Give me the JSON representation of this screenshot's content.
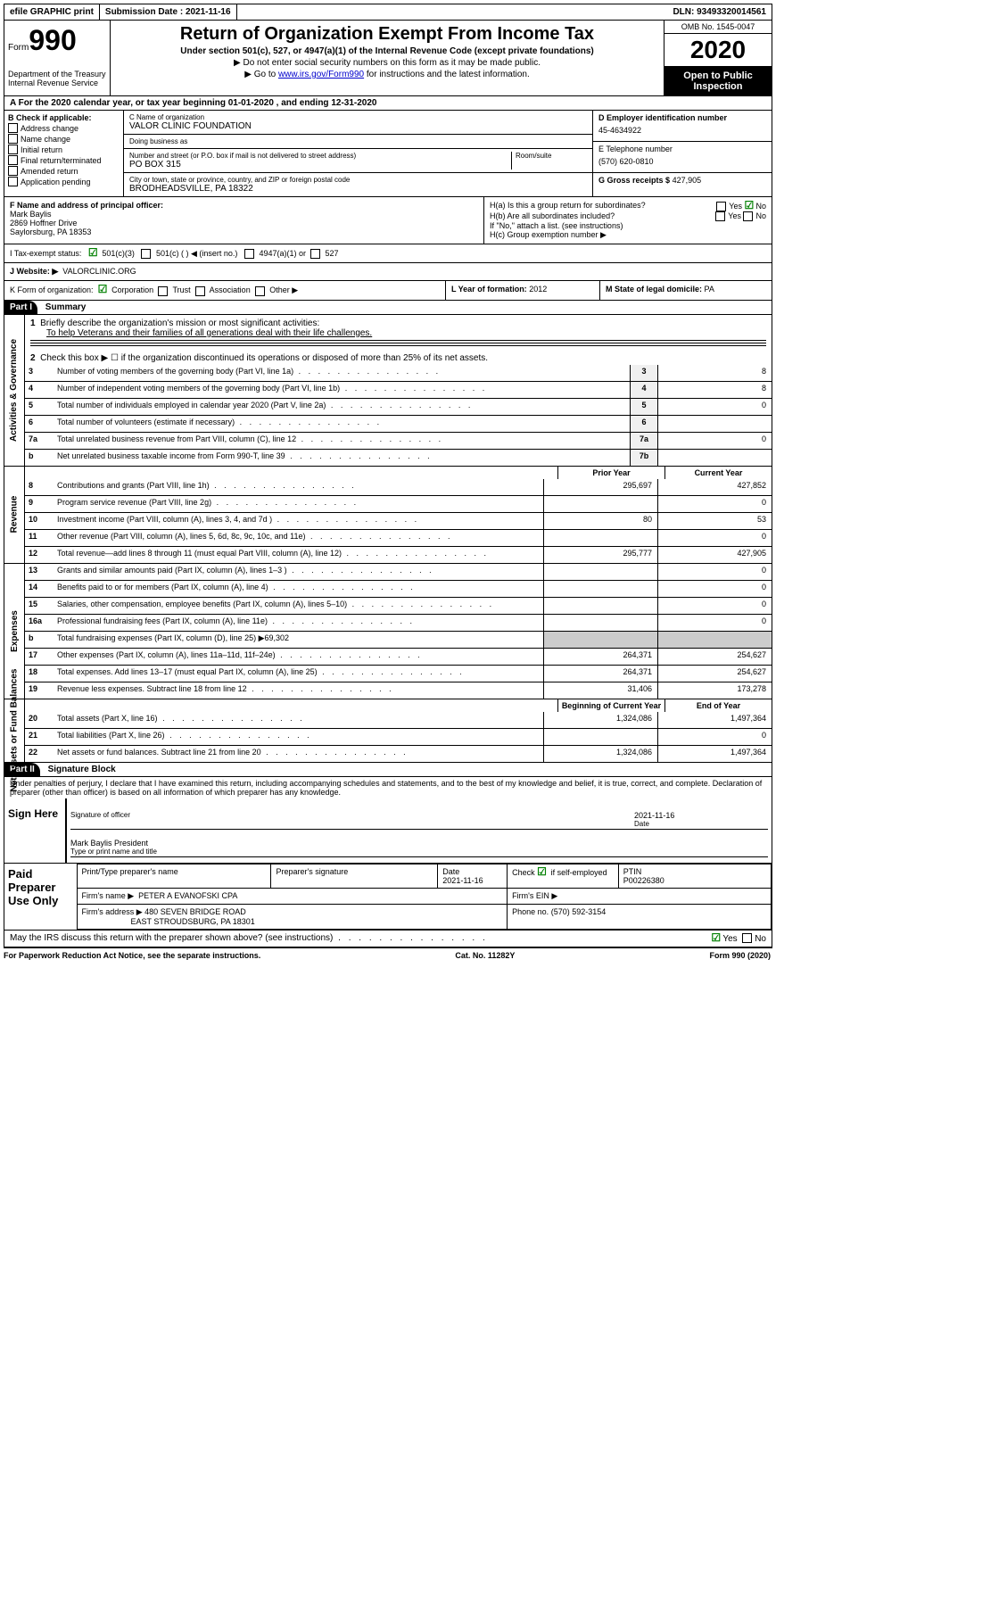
{
  "topbar": {
    "efile": "efile GRAPHIC print",
    "submission_label": "Submission Date :",
    "submission_date": "2021-11-16",
    "dln_label": "DLN:",
    "dln": "93493320014561"
  },
  "header": {
    "form_prefix": "Form",
    "form_number": "990",
    "dept": "Department of the Treasury",
    "irs": "Internal Revenue Service",
    "title": "Return of Organization Exempt From Income Tax",
    "subtitle": "Under section 501(c), 527, or 4947(a)(1) of the Internal Revenue Code (except private foundations)",
    "note1": "Do not enter social security numbers on this form as it may be made public.",
    "note2_pre": "Go to ",
    "note2_link": "www.irs.gov/Form990",
    "note2_post": " for instructions and the latest information.",
    "omb": "OMB No. 1545-0047",
    "year": "2020",
    "inspection": "Open to Public Inspection"
  },
  "row_a": "A For the 2020 calendar year, or tax year beginning 01-01-2020     , and ending 12-31-2020",
  "box_b": {
    "label": "B Check if applicable:",
    "items": [
      "Address change",
      "Name change",
      "Initial return",
      "Final return/terminated",
      "Amended return",
      "Application pending"
    ]
  },
  "box_c": {
    "name_lbl": "C Name of organization",
    "name": "VALOR CLINIC FOUNDATION",
    "dba_lbl": "Doing business as",
    "dba": "",
    "street_lbl": "Number and street (or P.O. box if mail is not delivered to street address)",
    "room_lbl": "Room/suite",
    "street": "PO BOX 315",
    "city_lbl": "City or town, state or province, country, and ZIP or foreign postal code",
    "city": "BRODHEADSVILLE, PA   18322"
  },
  "box_d": {
    "ein_lbl": "D Employer identification number",
    "ein": "45-4634922",
    "phone_lbl": "E Telephone number",
    "phone": "(570) 620-0810",
    "gross_lbl": "G Gross receipts $",
    "gross": "427,905"
  },
  "box_f": {
    "lbl": "F Name and address of principal officer:",
    "name": "Mark Baylis",
    "addr1": "2869 Hoffner Drive",
    "addr2": "Saylorsburg, PA   18353"
  },
  "box_h": {
    "a": "H(a)  Is this a group return for subordinates?",
    "b": "H(b)  Are all subordinates included?",
    "b_note": "If \"No,\" attach a list. (see instructions)",
    "c": "H(c)  Group exemption number ▶",
    "yes": "Yes",
    "no": "No"
  },
  "tax_exempt": {
    "lbl": "I  Tax-exempt status:",
    "opt1": "501(c)(3)",
    "opt2": "501(c) (    ) ◀ (insert no.)",
    "opt3": "4947(a)(1) or",
    "opt4": "527"
  },
  "row_j": {
    "lbl": "J  Website: ▶",
    "val": "VALORCLINIC.ORG"
  },
  "row_k": {
    "lbl": "K Form of organization:",
    "opts": [
      "Corporation",
      "Trust",
      "Association",
      "Other ▶"
    ]
  },
  "row_l": {
    "lbl": "L Year of formation:",
    "val": "2012"
  },
  "row_m": {
    "lbl": "M State of legal domicile:",
    "val": "PA"
  },
  "parts": {
    "p1": "Part I",
    "p1_title": "Summary",
    "p2": "Part II",
    "p2_title": "Signature Block"
  },
  "sidelabels": {
    "ag": "Activities & Governance",
    "rev": "Revenue",
    "exp": "Expenses",
    "na": "Net Assets or Fund Balances"
  },
  "summary": {
    "l1": "Briefly describe the organization's mission or most significant activities:",
    "l1_val": "To help Veterans and their families of all generations deal with their life challenges.",
    "l2": "Check this box ▶ ☐  if the organization discontinued its operations or disposed of more than 25% of its net assets.",
    "lines_ag": [
      {
        "n": "3",
        "t": "Number of voting members of the governing body (Part VI, line 1a)",
        "b": "3",
        "v": "8"
      },
      {
        "n": "4",
        "t": "Number of independent voting members of the governing body (Part VI, line 1b)",
        "b": "4",
        "v": "8"
      },
      {
        "n": "5",
        "t": "Total number of individuals employed in calendar year 2020 (Part V, line 2a)",
        "b": "5",
        "v": "0"
      },
      {
        "n": "6",
        "t": "Total number of volunteers (estimate if necessary)",
        "b": "6",
        "v": ""
      },
      {
        "n": "7a",
        "t": "Total unrelated business revenue from Part VIII, column (C), line 12",
        "b": "7a",
        "v": "0"
      },
      {
        "n": "b",
        "t": "Net unrelated business taxable income from Form 990-T, line 39",
        "b": "7b",
        "v": ""
      }
    ],
    "col_prior": "Prior Year",
    "col_current": "Current Year",
    "lines_rev": [
      {
        "n": "8",
        "t": "Contributions and grants (Part VIII, line 1h)",
        "p": "295,697",
        "c": "427,852"
      },
      {
        "n": "9",
        "t": "Program service revenue (Part VIII, line 2g)",
        "p": "",
        "c": "0"
      },
      {
        "n": "10",
        "t": "Investment income (Part VIII, column (A), lines 3, 4, and 7d )",
        "p": "80",
        "c": "53"
      },
      {
        "n": "11",
        "t": "Other revenue (Part VIII, column (A), lines 5, 6d, 8c, 9c, 10c, and 11e)",
        "p": "",
        "c": "0"
      },
      {
        "n": "12",
        "t": "Total revenue—add lines 8 through 11 (must equal Part VIII, column (A), line 12)",
        "p": "295,777",
        "c": "427,905"
      }
    ],
    "lines_exp": [
      {
        "n": "13",
        "t": "Grants and similar amounts paid (Part IX, column (A), lines 1–3 )",
        "p": "",
        "c": "0"
      },
      {
        "n": "14",
        "t": "Benefits paid to or for members (Part IX, column (A), line 4)",
        "p": "",
        "c": "0"
      },
      {
        "n": "15",
        "t": "Salaries, other compensation, employee benefits (Part IX, column (A), lines 5–10)",
        "p": "",
        "c": "0"
      },
      {
        "n": "16a",
        "t": "Professional fundraising fees (Part IX, column (A), line 11e)",
        "p": "",
        "c": "0"
      },
      {
        "n": "b",
        "t": "Total fundraising expenses (Part IX, column (D), line 25) ▶69,302",
        "p": "—",
        "c": "—"
      },
      {
        "n": "17",
        "t": "Other expenses (Part IX, column (A), lines 11a–11d, 11f–24e)",
        "p": "264,371",
        "c": "254,627"
      },
      {
        "n": "18",
        "t": "Total expenses. Add lines 13–17 (must equal Part IX, column (A), line 25)",
        "p": "264,371",
        "c": "254,627"
      },
      {
        "n": "19",
        "t": "Revenue less expenses. Subtract line 18 from line 12",
        "p": "31,406",
        "c": "173,278"
      }
    ],
    "col_begin": "Beginning of Current Year",
    "col_end": "End of Year",
    "lines_na": [
      {
        "n": "20",
        "t": "Total assets (Part X, line 16)",
        "p": "1,324,086",
        "c": "1,497,364"
      },
      {
        "n": "21",
        "t": "Total liabilities (Part X, line 26)",
        "p": "",
        "c": "0"
      },
      {
        "n": "22",
        "t": "Net assets or fund balances. Subtract line 21 from line 20",
        "p": "1,324,086",
        "c": "1,497,364"
      }
    ]
  },
  "sig": {
    "perjury": "Under penalties of perjury, I declare that I have examined this return, including accompanying schedules and statements, and to the best of my knowledge and belief, it is true, correct, and complete. Declaration of preparer (other than officer) is based on all information of which preparer has any knowledge.",
    "sign_here": "Sign Here",
    "officer_sig": "Signature of officer",
    "date": "Date",
    "date_val": "2021-11-16",
    "officer_name": "Mark Baylis  President",
    "officer_name_lbl": "Type or print name and title"
  },
  "prep": {
    "label": "Paid Preparer Use Only",
    "name_lbl": "Print/Type preparer's name",
    "sig_lbl": "Preparer's signature",
    "date_lbl": "Date",
    "date": "2021-11-16",
    "check_lbl": "Check ",
    "check_suf": " if self-employed",
    "ptin_lbl": "PTIN",
    "ptin": "P00226380",
    "firm_name_lbl": "Firm's name     ▶",
    "firm_name": "PETER A EVANOFSKI CPA",
    "firm_ein_lbl": "Firm's EIN ▶",
    "firm_addr_lbl": "Firm's address ▶",
    "firm_addr1": "480 SEVEN BRIDGE ROAD",
    "firm_addr2": "EAST STROUDSBURG, PA   18301",
    "firm_phone_lbl": "Phone no.",
    "firm_phone": "(570) 592-3154"
  },
  "discuss": "May the IRS discuss this return with the preparer shown above? (see instructions)",
  "footer": {
    "left": "For Paperwork Reduction Act Notice, see the separate instructions.",
    "mid": "Cat. No. 11282Y",
    "right": "Form 990 (2020)"
  }
}
